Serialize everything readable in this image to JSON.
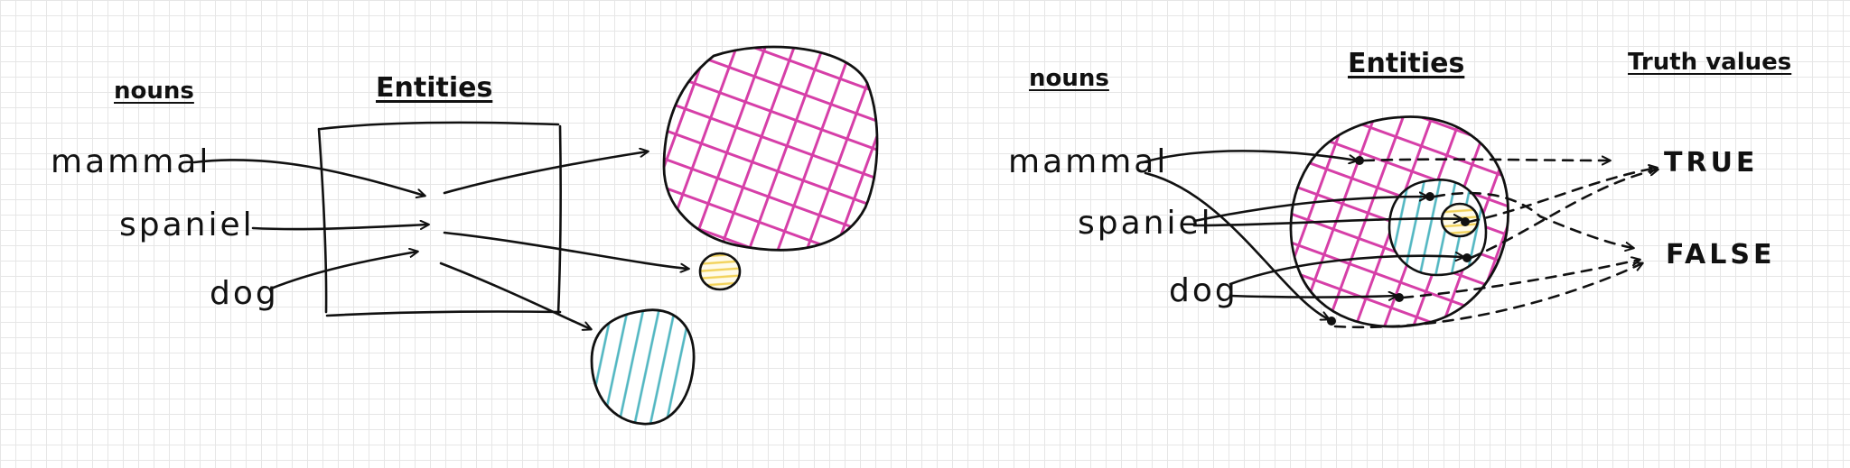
{
  "colors": {
    "ink": "#111111",
    "mammal_hatch": "#d63fa8",
    "spaniel_hatch": "#f2d25a",
    "dog_hatch": "#52b7c2",
    "grid": "#e6e6e6"
  },
  "left_diagram": {
    "nouns_header": "nouns",
    "entities_header": "Entities",
    "nouns": [
      "mammal",
      "spaniel",
      "dog"
    ]
  },
  "right_diagram": {
    "nouns_header": "nouns",
    "entities_header": "Entities",
    "truth_header": "Truth values",
    "nouns": [
      "mammal",
      "spaniel",
      "dog"
    ],
    "truth_values": [
      "TRUE",
      "FALSE"
    ]
  }
}
